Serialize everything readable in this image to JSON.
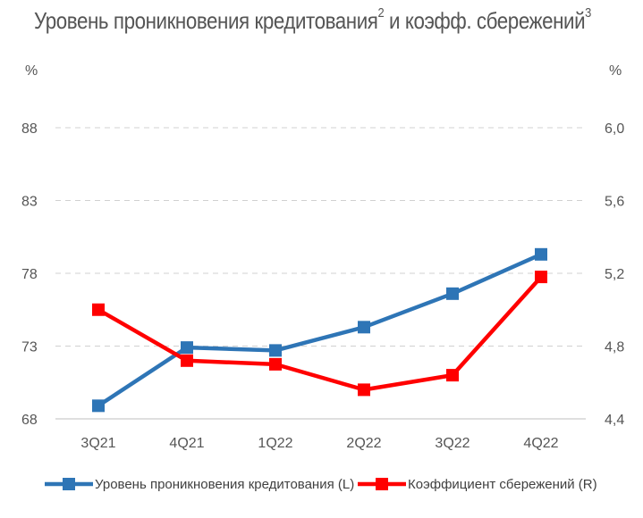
{
  "chart_data": {
    "type": "line",
    "title": {
      "part1": "Уровень проникновения кредитования",
      "sup1": "2",
      "part2": " и коэфф. сбережений",
      "sup2": "3"
    },
    "categories": [
      "3Q21",
      "4Q21",
      "1Q22",
      "2Q22",
      "3Q22",
      "4Q22"
    ],
    "y_left": {
      "label": "%",
      "range": [
        68,
        88
      ],
      "ticks": [
        "68",
        "73",
        "78",
        "83",
        "88"
      ]
    },
    "y_right": {
      "label": "%",
      "range": [
        4.4,
        6.0
      ],
      "ticks": [
        "4,4",
        "4,8",
        "5,2",
        "5,6",
        "6,0"
      ]
    },
    "series": [
      {
        "name": "Уровень проникновения кредитования (L)",
        "axis": "left",
        "color": "#2E75B6",
        "values": [
          68.9,
          72.9,
          72.7,
          74.3,
          76.6,
          79.3
        ]
      },
      {
        "name": "Коэффициент сбережений (R)",
        "axis": "right",
        "color": "#FF0000",
        "values": [
          5.0,
          4.72,
          4.7,
          4.56,
          4.64,
          5.18
        ]
      }
    ],
    "grid": "horizontal-dashed",
    "legend": "bottom"
  }
}
